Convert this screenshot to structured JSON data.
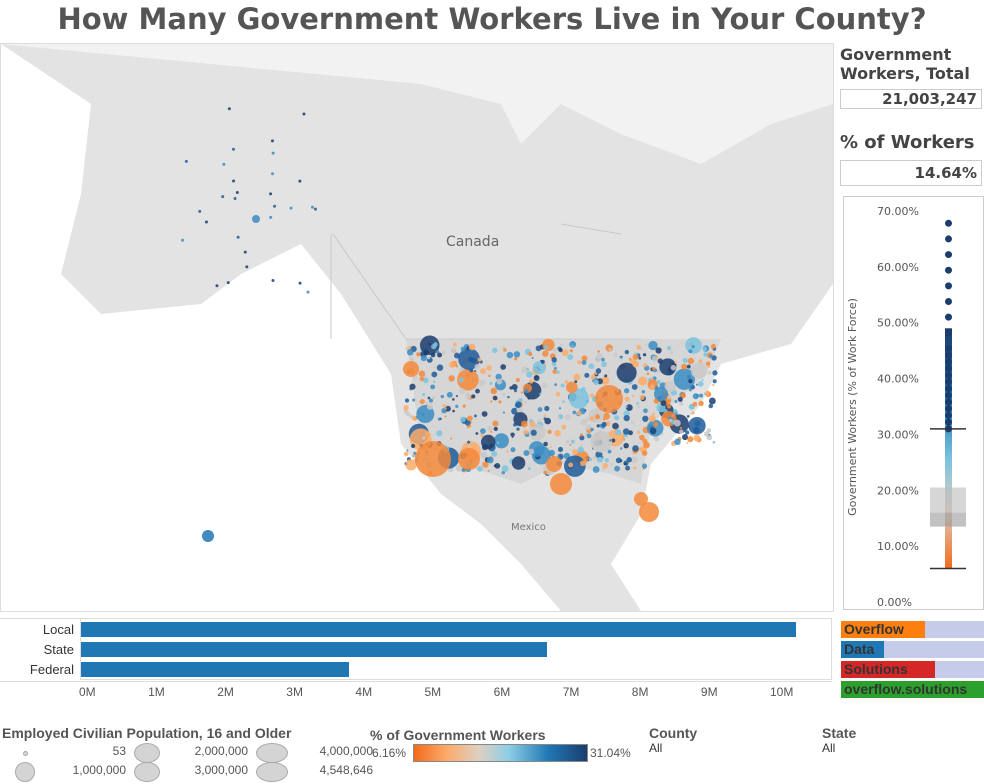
{
  "title": "How Many Government Workers Live in Your County?",
  "map": {
    "label_canada": "Canada",
    "label_mexico": "Mexico"
  },
  "summary": {
    "total_label": "Government Workers, Total",
    "total_value": "21,003,247",
    "pct_label": "% of Workers",
    "pct_value": "14.64%"
  },
  "boxplot": {
    "axis_label": "Government Workers (% of Work Force)",
    "ticks": [
      "70.00%",
      "60.00%",
      "50.00%",
      "40.00%",
      "30.00%",
      "20.00%",
      "10.00%",
      "0.00%"
    ],
    "whisker_low": 6,
    "q1": 13.5,
    "median": 16,
    "q3": 20.5,
    "whisker_high": 31,
    "max": 68
  },
  "bars": {
    "categories": [
      "Local",
      "State",
      "Federal"
    ],
    "values": [
      10.35,
      6.75,
      3.88
    ],
    "ticks": [
      "0M",
      "1M",
      "2M",
      "3M",
      "4M",
      "5M",
      "6M",
      "7M",
      "8M",
      "9M",
      "10M"
    ],
    "color": "#1f77b4"
  },
  "overflow": [
    {
      "label": "Overflow",
      "color": "#ff7f0e",
      "fill": 0.59
    },
    {
      "label": "Data",
      "color": "#1f77b4",
      "fill": 0.3
    },
    {
      "label": "Solutions",
      "color": "#d62728",
      "fill": 0.66
    },
    {
      "label": "overflow.solutions",
      "color": "#2ca02c",
      "fill": 1
    }
  ],
  "legend_size": {
    "title": "Employed Civilian Population, 16 and Older",
    "items": [
      "53",
      "1,000,000",
      "2,000,000",
      "3,000,000",
      "4,000,000",
      "4,548,646"
    ]
  },
  "legend_color": {
    "title": "% of Government Workers",
    "min": "6.16%",
    "max": "31.04%"
  },
  "filters": {
    "county_label": "County",
    "county_value": "All",
    "state_label": "State",
    "state_value": "All"
  }
}
